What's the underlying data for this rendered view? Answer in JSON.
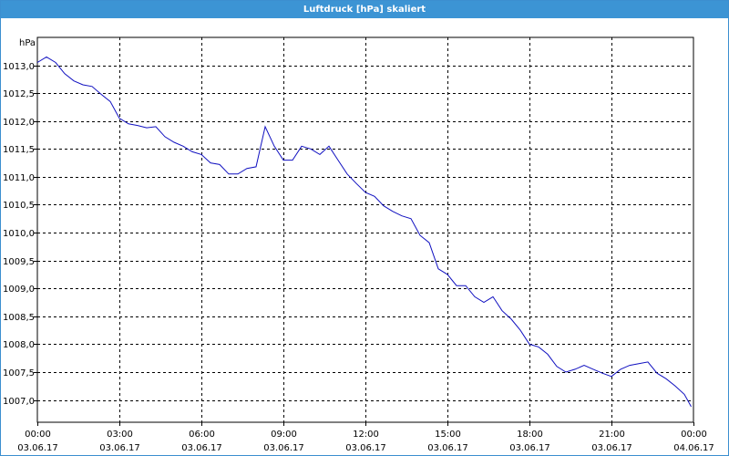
{
  "window": {
    "title": "Luftdruck [hPa] skaliert"
  },
  "colors": {
    "titlebar": "#3c94d4",
    "series": "#1010c0",
    "grid": "#000000"
  },
  "chart_data": {
    "type": "line",
    "ylabel": "hPa",
    "ylim": [
      1006.6,
      1013.5
    ],
    "yticks": [
      1013.0,
      1012.5,
      1012.0,
      1011.5,
      1011.0,
      1010.5,
      1010.0,
      1009.5,
      1009.0,
      1008.5,
      1008.0,
      1007.5,
      1007.0
    ],
    "ytick_labels": [
      "1013,0",
      "1012,5",
      "1012,0",
      "1011,5",
      "1011,0",
      "1010,5",
      "1010,0",
      "1009,5",
      "1009,0",
      "1008,5",
      "1008,0",
      "1007,5",
      "1007,0"
    ],
    "xticks": [
      {
        "time": "00:00",
        "date": "03.06.17"
      },
      {
        "time": "03:00",
        "date": "03.06.17"
      },
      {
        "time": "06:00",
        "date": "03.06.17"
      },
      {
        "time": "09:00",
        "date": "03.06.17"
      },
      {
        "time": "12:00",
        "date": "03.06.17"
      },
      {
        "time": "15:00",
        "date": "03.06.17"
      },
      {
        "time": "18:00",
        "date": "03.06.17"
      },
      {
        "time": "21:00",
        "date": "03.06.17"
      },
      {
        "time": "00:00",
        "date": "04.06.17"
      }
    ],
    "grid": true,
    "series": [
      {
        "x": [
          "03.06.17 00:00",
          "03.06.17 00:20",
          "03.06.17 00:40",
          "03.06.17 01:00",
          "03.06.17 01:20",
          "03.06.17 01:40",
          "03.06.17 02:00",
          "03.06.17 02:20",
          "03.06.17 02:40",
          "03.06.17 03:00",
          "03.06.17 03:20",
          "03.06.17 03:40",
          "03.06.17 04:00",
          "03.06.17 04:20",
          "03.06.17 04:40",
          "03.06.17 05:00",
          "03.06.17 05:20",
          "03.06.17 05:40",
          "03.06.17 06:00",
          "03.06.17 06:20",
          "03.06.17 06:40",
          "03.06.17 07:00",
          "03.06.17 07:20",
          "03.06.17 07:40",
          "03.06.17 08:00",
          "03.06.17 08:20",
          "03.06.17 08:40",
          "03.06.17 09:00",
          "03.06.17 09:20",
          "03.06.17 09:40",
          "03.06.17 10:00",
          "03.06.17 10:20",
          "03.06.17 10:40",
          "03.06.17 11:00",
          "03.06.17 11:20",
          "03.06.17 11:40",
          "03.06.17 12:00",
          "03.06.17 12:20",
          "03.06.17 12:40",
          "03.06.17 13:00",
          "03.06.17 13:20",
          "03.06.17 13:40",
          "03.06.17 14:00",
          "03.06.17 14:20",
          "03.06.17 14:40",
          "03.06.17 15:00",
          "03.06.17 15:20",
          "03.06.17 15:40",
          "03.06.17 16:00",
          "03.06.17 16:20",
          "03.06.17 16:40",
          "03.06.17 17:00",
          "03.06.17 17:20",
          "03.06.17 17:40",
          "03.06.17 18:00",
          "03.06.17 18:20",
          "03.06.17 18:40",
          "03.06.17 19:00",
          "03.06.17 19:20",
          "03.06.17 19:40",
          "03.06.17 20:00",
          "03.06.17 20:20",
          "03.06.17 20:40",
          "03.06.17 21:00",
          "03.06.17 21:20",
          "03.06.17 21:40",
          "03.06.17 22:00",
          "03.06.17 22:20",
          "03.06.17 22:40",
          "03.06.17 23:00",
          "03.06.17 23:20",
          "03.06.17 23:40",
          "03.06.17 23:55"
        ],
        "values": [
          1013.05,
          1013.15,
          1013.05,
          1012.85,
          1012.72,
          1012.65,
          1012.62,
          1012.48,
          1012.35,
          1012.05,
          1011.95,
          1011.92,
          1011.88,
          1011.9,
          1011.72,
          1011.62,
          1011.55,
          1011.45,
          1011.4,
          1011.25,
          1011.22,
          1011.05,
          1011.05,
          1011.15,
          1011.18,
          1011.9,
          1011.55,
          1011.3,
          1011.3,
          1011.55,
          1011.5,
          1011.4,
          1011.55,
          1011.3,
          1011.05,
          1010.88,
          1010.72,
          1010.65,
          1010.48,
          1010.38,
          1010.3,
          1010.25,
          1009.95,
          1009.82,
          1009.35,
          1009.25,
          1009.05,
          1009.05,
          1008.85,
          1008.75,
          1008.85,
          1008.6,
          1008.45,
          1008.25,
          1008.0,
          1007.95,
          1007.82,
          1007.6,
          1007.5,
          1007.55,
          1007.62,
          1007.55,
          1007.48,
          1007.42,
          1007.55,
          1007.62,
          1007.65,
          1007.68,
          1007.48,
          1007.38,
          1007.25,
          1007.1,
          1006.88
        ]
      }
    ]
  }
}
